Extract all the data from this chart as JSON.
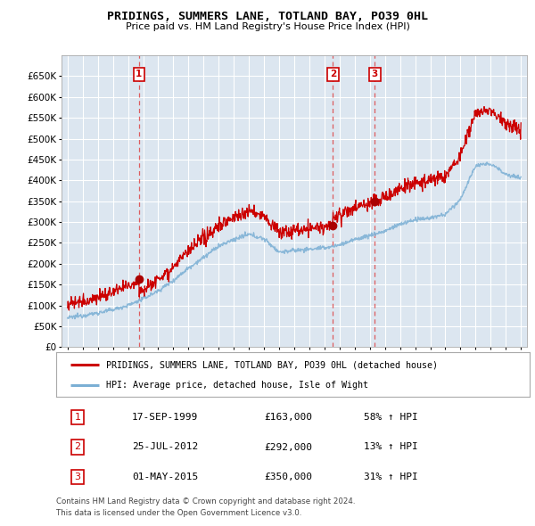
{
  "title": "PRIDINGS, SUMMERS LANE, TOTLAND BAY, PO39 0HL",
  "subtitle": "Price paid vs. HM Land Registry's House Price Index (HPI)",
  "legend_line1": "PRIDINGS, SUMMERS LANE, TOTLAND BAY, PO39 0HL (detached house)",
  "legend_line2": "HPI: Average price, detached house, Isle of Wight",
  "footer1": "Contains HM Land Registry data © Crown copyright and database right 2024.",
  "footer2": "This data is licensed under the Open Government Licence v3.0.",
  "transactions": [
    {
      "num": 1,
      "date": "17-SEP-1999",
      "price": 163000,
      "pct": "58%",
      "dir": "↑",
      "x": 1999.72
    },
    {
      "num": 2,
      "date": "25-JUL-2012",
      "price": 292000,
      "pct": "13%",
      "dir": "↑",
      "x": 2012.56
    },
    {
      "num": 3,
      "date": "01-MAY-2015",
      "price": 350000,
      "pct": "31%",
      "dir": "↑",
      "x": 2015.33
    }
  ],
  "ylim": [
    0,
    700000
  ],
  "yticks": [
    0,
    50000,
    100000,
    150000,
    200000,
    250000,
    300000,
    350000,
    400000,
    450000,
    500000,
    550000,
    600000,
    650000
  ],
  "xlim_left": 1994.6,
  "xlim_right": 2025.4,
  "background_color": "#ffffff",
  "plot_bg_color": "#dce6f0",
  "grid_color": "#ffffff",
  "red_line_color": "#cc0000",
  "blue_line_color": "#7bafd4",
  "vline_color": "#dd4444",
  "marker_color": "#aa0000",
  "num_box_color": "#cc0000"
}
